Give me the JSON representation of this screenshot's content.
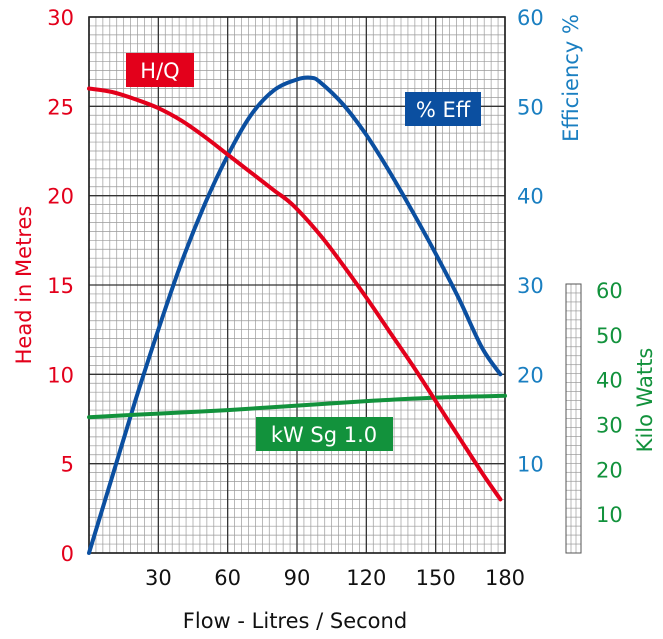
{
  "chart_data": {
    "type": "line",
    "xlabel": "Flow - Litres / Second",
    "x_ticks": [
      "30",
      "60",
      "90",
      "120",
      "150",
      "180"
    ],
    "xlim": [
      0,
      180
    ],
    "grid": true,
    "colors": {
      "head": "#e3001b",
      "efficiency": "#0b4fa0",
      "efficiency_axis": "#1a7fc1",
      "power": "#12923c",
      "grid_major": "#333333",
      "grid_minor": "#9a9a9a"
    },
    "axes": {
      "head": {
        "label": "Head in Metres",
        "ticks": [
          "0",
          "5",
          "10",
          "15",
          "20",
          "25",
          "30"
        ],
        "ylim": [
          0,
          30
        ]
      },
      "efficiency": {
        "label": "Efficiency %",
        "ticks": [
          "10",
          "20",
          "30",
          "40",
          "50",
          "60"
        ],
        "ylim": [
          0,
          60
        ]
      },
      "power": {
        "label": "Kilo Watts",
        "ticks": [
          "10",
          "20",
          "30",
          "40",
          "50",
          "60"
        ],
        "ylim": [
          0,
          60
        ]
      }
    },
    "series": [
      {
        "name": "H/Q",
        "axis": "head",
        "x": [
          0,
          10,
          20,
          30,
          40,
          50,
          60,
          70,
          80,
          88,
          100,
          110,
          120,
          130,
          140,
          150,
          160,
          170,
          178
        ],
        "y": [
          26.0,
          25.8,
          25.4,
          24.9,
          24.2,
          23.3,
          22.3,
          21.3,
          20.3,
          19.5,
          17.8,
          16.1,
          14.3,
          12.4,
          10.5,
          8.5,
          6.5,
          4.5,
          3.0
        ]
      },
      {
        "name": "% Eff",
        "axis": "efficiency",
        "x": [
          0,
          10,
          20,
          30,
          40,
          50,
          60,
          70,
          80,
          90,
          96,
          100,
          110,
          120,
          130,
          140,
          150,
          160,
          170,
          178
        ],
        "y": [
          0,
          8.5,
          17,
          25,
          32.5,
          39,
          44.5,
          49,
          51.8,
          53,
          53.2,
          52.7,
          50.2,
          46.8,
          42.7,
          38.2,
          33.5,
          28.5,
          23,
          20
        ]
      },
      {
        "name": "kW Sg 1.0",
        "axis": "head",
        "x": [
          0,
          30,
          60,
          90,
          120,
          150,
          180
        ],
        "y": [
          7.6,
          7.8,
          8.0,
          8.25,
          8.5,
          8.7,
          8.8
        ]
      }
    ]
  }
}
